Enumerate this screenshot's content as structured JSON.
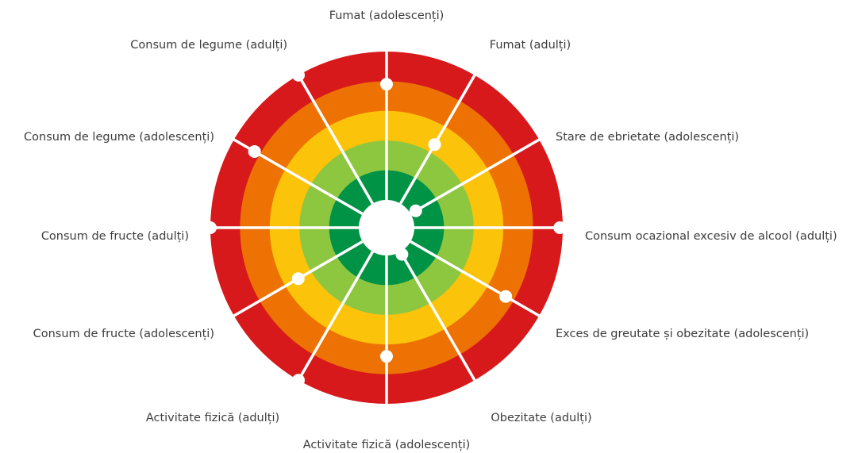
{
  "chart_data": {
    "type": "target",
    "categories": [
      "Fumat (adolescenți)",
      "Fumat (adulți)",
      "Stare de ebrietate (adolescenți)",
      "Consum ocazional excesiv de alcool (adulți)",
      "Exces de greutate și obezitate (adolescenți)",
      "Obezitate (adulți)",
      "Activitate fizică (adolescenți)",
      "Activitate fizică (adulți)",
      "Consum de fructe (adolescenți)",
      "Consum de fructe (adulți)",
      "Consum de legume (adolescenți)",
      "Consum de legume (adulți)"
    ],
    "values": [
      3.9,
      2.3,
      0.2,
      4.9,
      3.7,
      0.1,
      3.4,
      5.0,
      2.5,
      5.0,
      4.2,
      5.0
    ],
    "rlim": [
      0,
      5
    ],
    "bands": [
      "#009245",
      "#8dc63f",
      "#fcc30b",
      "#ee7203",
      "#d7191c"
    ],
    "color": "#ffffff"
  }
}
